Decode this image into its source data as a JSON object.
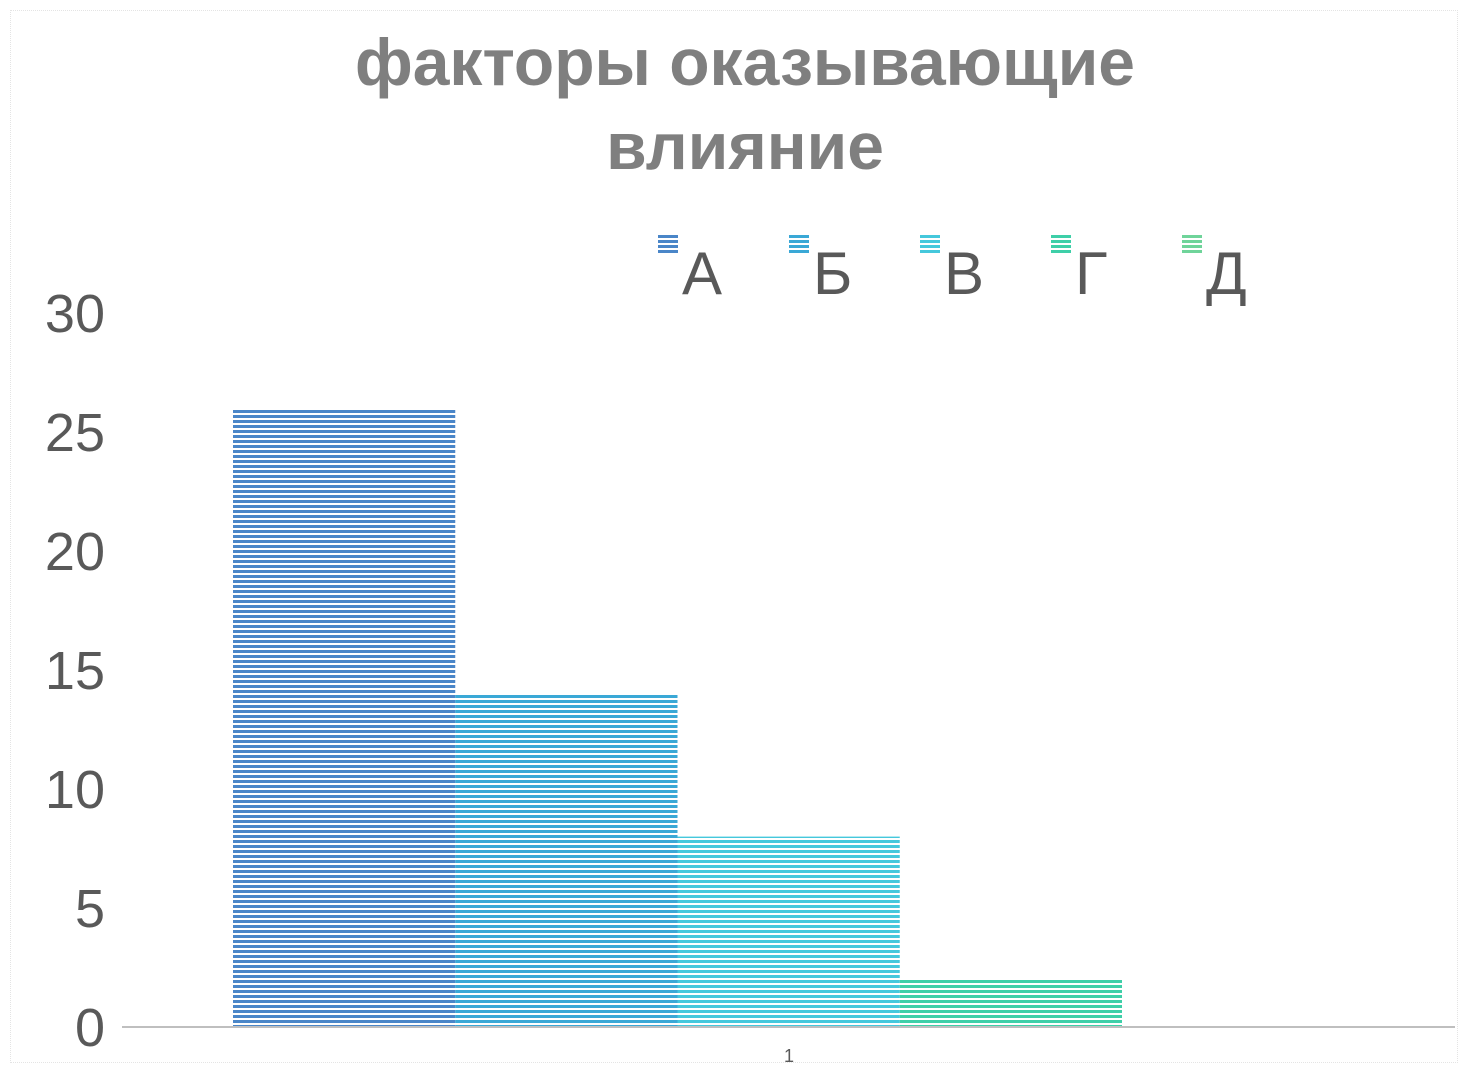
{
  "chart_data": {
    "type": "bar",
    "title_lines": [
      "факторы оказывающие",
      "влияние"
    ],
    "categories": [
      "1"
    ],
    "series": [
      {
        "name": "А",
        "values": [
          26
        ],
        "color": "#4a86c8"
      },
      {
        "name": "Б",
        "values": [
          14
        ],
        "color": "#3aa8d6"
      },
      {
        "name": "В",
        "values": [
          8
        ],
        "color": "#45c8dc"
      },
      {
        "name": "Г",
        "values": [
          2
        ],
        "color": "#3ecfa8"
      },
      {
        "name": "Д",
        "values": [
          0
        ],
        "color": "#6fd49a"
      }
    ],
    "y_ticks": [
      "0",
      "5",
      "10",
      "15",
      "20",
      "25",
      "30"
    ],
    "ylim": [
      0,
      30
    ],
    "grid": false,
    "legend_position": "top",
    "fill_pattern": "horizontal-stripes"
  }
}
